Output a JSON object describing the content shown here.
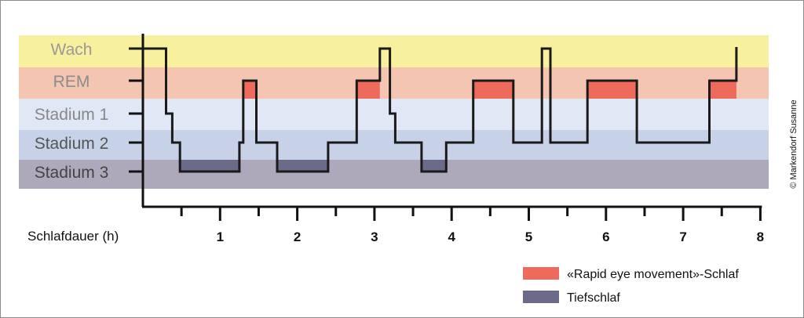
{
  "chart_data": {
    "type": "line",
    "xlabel": "Schlafdauer (h)",
    "x_ticks": [
      "1",
      "2",
      "3",
      "4",
      "5",
      "6",
      "7",
      "8"
    ],
    "xlim": [
      0,
      8
    ],
    "stages": [
      {
        "key": "wach",
        "label": "Wach",
        "color": "#f7f19d",
        "text_color": "#9a9a9a"
      },
      {
        "key": "rem",
        "label": "REM",
        "color": "#f4c6b2",
        "text_color": "#8c8c8c"
      },
      {
        "key": "s1",
        "label": "Stadium 1",
        "color": "#dfe8f4",
        "text_color": "#888888"
      },
      {
        "key": "s2",
        "label": "Stadium 2",
        "color": "#c7d2e8",
        "text_color": "#555555"
      },
      {
        "key": "s3",
        "label": "Stadium 3",
        "color": "#ada9bb",
        "text_color": "#444444"
      }
    ],
    "hypnogram": [
      [
        0.0,
        "wach"
      ],
      [
        0.3,
        "s1"
      ],
      [
        0.38,
        "s2"
      ],
      [
        0.48,
        "s3"
      ],
      [
        1.25,
        "s2"
      ],
      [
        1.3,
        "rem"
      ],
      [
        1.47,
        "s2"
      ],
      [
        1.74,
        "s3"
      ],
      [
        2.4,
        "s2"
      ],
      [
        2.77,
        "rem"
      ],
      [
        3.07,
        "wach"
      ],
      [
        3.2,
        "s1"
      ],
      [
        3.27,
        "s2"
      ],
      [
        3.61,
        "s3"
      ],
      [
        3.93,
        "s2"
      ],
      [
        4.28,
        "rem"
      ],
      [
        4.8,
        "s2"
      ],
      [
        5.17,
        "wach"
      ],
      [
        5.28,
        "s2"
      ],
      [
        5.76,
        "rem"
      ],
      [
        6.4,
        "s2"
      ],
      [
        7.34,
        "rem"
      ],
      [
        7.69,
        "wach"
      ]
    ],
    "hypnogram_end": 7.69,
    "rem_periods": [
      [
        1.3,
        1.47
      ],
      [
        2.77,
        3.07
      ],
      [
        4.28,
        4.8
      ],
      [
        5.76,
        6.4
      ],
      [
        7.34,
        7.69
      ]
    ],
    "deep_sleep_periods": [
      [
        0.48,
        1.25
      ],
      [
        1.74,
        2.4
      ],
      [
        3.61,
        3.93
      ]
    ],
    "legend": [
      {
        "label": "«Rapid eye movement»-Schlaf",
        "color": "#ee6b5c"
      },
      {
        "label": "Tiefschlaf",
        "color": "#6b6a88"
      }
    ],
    "grid": false
  },
  "credit": "© Markendorf Susanne"
}
